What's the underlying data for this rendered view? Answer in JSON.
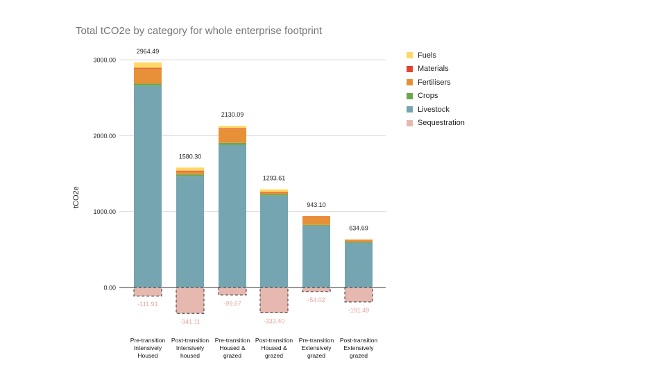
{
  "chart_data": {
    "type": "bar",
    "stacked": true,
    "title": "Total tCO2e by category for whole enterprise footprint",
    "ylabel": "tCO2e",
    "ylim": [
      -400,
      3200
    ],
    "yticks": [
      "0.00",
      "1000.00",
      "2000.00",
      "3000.00"
    ],
    "ytick_values": [
      0,
      1000,
      2000,
      3000
    ],
    "grid": true,
    "legend_position": "right",
    "categories": [
      "Pre-transition\nIntensively\nHoused",
      "Post-transition\nIntensively\nhoused",
      "Pre-transition\nHoused &\ngrazed",
      "Post-transition\nHoused &\ngrazed",
      "Pre-transition\nExtensively\ngrazed",
      "Post-transition\nExtensively\ngrazed"
    ],
    "series": [
      {
        "name": "Livestock",
        "color": "#75a5b0",
        "values": [
          2660,
          1470,
          1880,
          1210,
          815,
          590
        ]
      },
      {
        "name": "Crops",
        "color": "#6aa84f",
        "values": [
          25,
          20,
          25,
          20,
          10,
          10
        ]
      },
      {
        "name": "Fertilisers",
        "color": "#e69138",
        "values": [
          200,
          40,
          180,
          20,
          105,
          25
        ]
      },
      {
        "name": "Materials",
        "color": "#e0442f",
        "values": [
          10,
          10,
          10,
          10,
          8,
          5
        ]
      },
      {
        "name": "Fuels",
        "color": "#ffd966",
        "values": [
          69.49,
          40.3,
          35.09,
          33.61,
          5.1,
          4.69
        ]
      },
      {
        "name": "Sequestration",
        "color": "#e6b8b0",
        "values": [
          -111.91,
          -341.11,
          -99.67,
          -333.4,
          -54.02,
          -191.49
        ]
      }
    ],
    "totals": [
      "2964.49",
      "1580.30",
      "2130.09",
      "1293.61",
      "943.10",
      "634.69"
    ],
    "sequestration_labels": [
      "-111.91",
      "-341.11",
      "-99.67",
      "-333.40",
      "-54.02",
      "-191.49"
    ],
    "legend_order": [
      "Fuels",
      "Materials",
      "Fertilisers",
      "Crops",
      "Livestock",
      "Sequestration"
    ]
  }
}
